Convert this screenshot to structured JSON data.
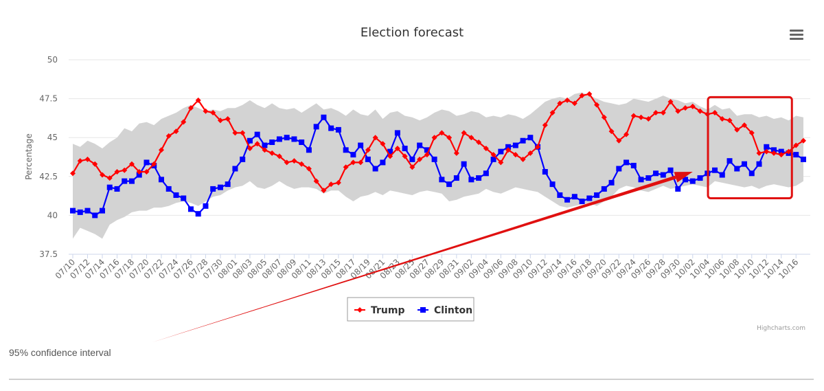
{
  "chart_data": {
    "type": "line",
    "title": "Election forecast",
    "ylabel": "Percentage",
    "ylim": [
      37.5,
      50
    ],
    "yticks": [
      "37.5",
      "40",
      "42.5",
      "45",
      "47.5",
      "50"
    ],
    "grid": true,
    "legend_placement": "bottom-center",
    "x_tick_labels": [
      "07/10",
      "07/12",
      "07/14",
      "07/16",
      "07/18",
      "07/20",
      "07/22",
      "07/24",
      "07/26",
      "07/28",
      "07/30",
      "08/01",
      "08/03",
      "08/05",
      "08/07",
      "08/09",
      "08/11",
      "08/13",
      "08/15",
      "08/17",
      "08/19",
      "08/21",
      "08/23",
      "08/25",
      "08/27",
      "08/29",
      "08/31",
      "09/02",
      "09/04",
      "09/06",
      "09/08",
      "09/10",
      "09/12",
      "09/14",
      "09/16",
      "09/18",
      "09/20",
      "09/22",
      "09/24",
      "09/26",
      "09/28",
      "09/30",
      "10/02",
      "10/04",
      "10/06",
      "10/08",
      "10/10",
      "10/12",
      "10/14",
      "10/16"
    ],
    "series": [
      {
        "name": "Trump",
        "color": "#ff0000",
        "marker": "diamond",
        "values": [
          42.7,
          43.5,
          43.6,
          43.3,
          42.6,
          42.4,
          42.8,
          42.9,
          43.3,
          42.8,
          42.8,
          43.3,
          44.2,
          45.1,
          45.4,
          46.0,
          46.9,
          47.4,
          46.7,
          46.6,
          46.1,
          46.2,
          45.3,
          45.3,
          44.3,
          44.6,
          44.2,
          44.0,
          43.8,
          43.4,
          43.5,
          43.3,
          43.0,
          42.2,
          41.6,
          42.0,
          42.1,
          43.1,
          43.4,
          43.4,
          44.2,
          45.0,
          44.6,
          43.8,
          44.3,
          43.8,
          43.1,
          43.6,
          43.9,
          45.0,
          45.3,
          45.0,
          44.0,
          45.3,
          45.0,
          44.7,
          44.3,
          43.9,
          43.4,
          44.2,
          43.9,
          43.6,
          44.0,
          44.4,
          45.8,
          46.6,
          47.2,
          47.4,
          47.2,
          47.7,
          47.8,
          47.1,
          46.3,
          45.4,
          44.8,
          45.2,
          46.4,
          46.3,
          46.2,
          46.6,
          46.6,
          47.3,
          46.7,
          46.9,
          47.0,
          46.7,
          46.5,
          46.6,
          46.2,
          46.1,
          45.5,
          45.8,
          45.3,
          44.0,
          44.1,
          44.0,
          43.9,
          44.1,
          44.5,
          44.8
        ]
      },
      {
        "name": "Clinton",
        "color": "#0000ff",
        "marker": "square",
        "values": [
          40.3,
          40.2,
          40.3,
          40.0,
          40.3,
          41.8,
          41.7,
          42.2,
          42.2,
          42.6,
          43.4,
          43.2,
          42.3,
          41.7,
          41.3,
          41.1,
          40.4,
          40.1,
          40.6,
          41.7,
          41.8,
          42.0,
          43.0,
          43.6,
          44.8,
          45.2,
          44.5,
          44.7,
          44.9,
          45.0,
          44.9,
          44.7,
          44.2,
          45.7,
          46.3,
          45.6,
          45.5,
          44.2,
          43.9,
          44.5,
          43.6,
          43.0,
          43.4,
          44.1,
          45.3,
          44.3,
          43.6,
          44.5,
          44.2,
          43.6,
          42.3,
          42.0,
          42.4,
          43.3,
          42.3,
          42.4,
          42.7,
          43.6,
          44.1,
          44.4,
          44.5,
          44.8,
          45.0,
          44.4,
          42.8,
          42.0,
          41.3,
          41.0,
          41.2,
          40.9,
          41.1,
          41.3,
          41.7,
          42.1,
          43.0,
          43.4,
          43.2,
          42.3,
          42.4,
          42.7,
          42.6,
          42.9,
          41.7,
          42.3,
          42.2,
          42.4,
          42.7,
          42.9,
          42.6,
          43.5,
          43.0,
          43.3,
          42.7,
          43.3,
          44.4,
          44.2,
          44.1,
          44.0,
          43.9,
          43.6
        ]
      },
      {
        "name": "95% confidence interval",
        "color": "#d3d3d3",
        "type": "arearange",
        "upper": [
          44.6,
          44.4,
          44.8,
          44.6,
          44.3,
          44.7,
          45.0,
          45.6,
          45.4,
          45.9,
          46.0,
          45.8,
          46.2,
          46.4,
          46.6,
          46.9,
          47.1,
          46.9,
          46.7,
          46.8,
          46.7,
          46.9,
          46.9,
          47.1,
          47.4,
          47.1,
          46.9,
          47.2,
          46.9,
          46.8,
          46.9,
          46.6,
          46.9,
          47.2,
          46.8,
          46.9,
          46.7,
          46.4,
          46.8,
          46.5,
          46.4,
          46.8,
          46.2,
          46.6,
          46.7,
          46.4,
          46.3,
          46.1,
          46.3,
          46.6,
          46.8,
          46.7,
          46.4,
          46.5,
          46.7,
          46.6,
          46.3,
          46.4,
          46.3,
          46.5,
          46.4,
          46.2,
          46.5,
          46.9,
          47.3,
          47.5,
          47.6,
          47.5,
          47.8,
          47.9,
          47.7,
          47.5,
          47.3,
          47.2,
          47.1,
          47.2,
          47.5,
          47.4,
          47.3,
          47.5,
          47.7,
          47.5,
          47.4,
          47.2,
          47.3,
          47.0,
          46.8,
          47.1,
          46.8,
          46.9,
          46.4,
          46.5,
          46.5,
          46.3,
          46.4,
          46.2,
          46.3,
          46.1,
          46.4,
          46.3
        ],
        "lower": [
          38.5,
          39.2,
          39.0,
          38.8,
          38.5,
          39.4,
          39.7,
          39.9,
          40.2,
          40.3,
          40.3,
          40.5,
          40.5,
          40.6,
          40.8,
          40.9,
          40.8,
          40.6,
          40.9,
          41.2,
          41.3,
          41.6,
          41.8,
          41.9,
          42.2,
          41.8,
          41.7,
          41.9,
          42.2,
          41.9,
          41.7,
          41.8,
          41.8,
          41.7,
          41.4,
          41.6,
          41.6,
          41.2,
          40.9,
          41.2,
          41.3,
          41.5,
          41.3,
          41.6,
          41.5,
          41.4,
          41.3,
          41.5,
          41.6,
          41.5,
          41.4,
          40.9,
          41.0,
          41.2,
          41.3,
          41.4,
          41.7,
          41.5,
          41.4,
          41.6,
          41.8,
          41.7,
          41.6,
          41.5,
          41.2,
          40.9,
          40.6,
          40.5,
          40.6,
          40.7,
          40.8,
          40.6,
          40.9,
          41.2,
          41.7,
          41.9,
          41.8,
          41.6,
          41.5,
          41.7,
          41.9,
          41.7,
          41.8,
          41.9,
          42.0,
          41.9,
          41.8,
          42.2,
          42.1,
          42.0,
          41.9,
          41.8,
          41.9,
          41.7,
          41.9,
          42.0,
          41.9,
          41.8,
          41.9,
          42.2
        ]
      }
    ],
    "annotations": [
      {
        "kind": "highlight-box",
        "color": "#e01010",
        "x_range": [
          "10/05",
          "10/16"
        ],
        "y_range": [
          41.1,
          47.6
        ]
      },
      {
        "kind": "arrow",
        "color": "#e01010",
        "from_text": "95% confidence interval",
        "to_x": "10/02",
        "to_y": 42.8
      }
    ]
  },
  "labels": {
    "caption": "95% confidence interval",
    "credits": "Highcharts.com"
  },
  "icons": {
    "menu": "hamburger-menu-icon"
  }
}
